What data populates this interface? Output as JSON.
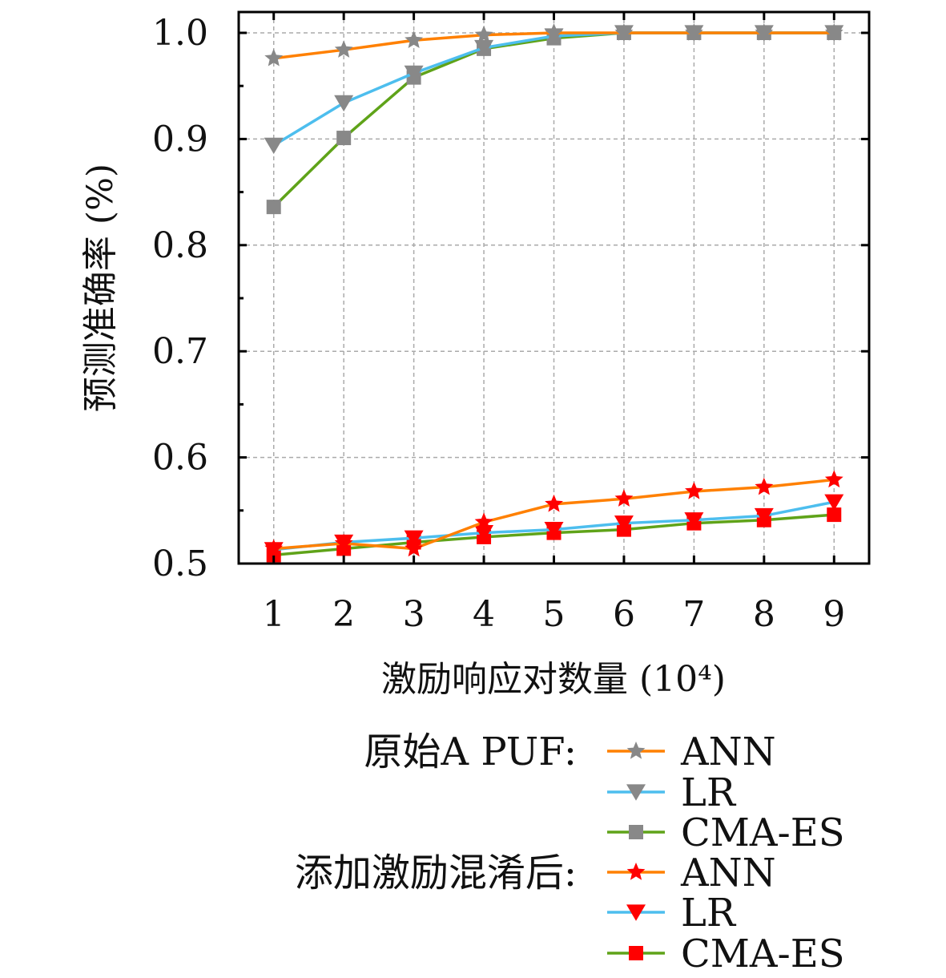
{
  "chart_data": {
    "type": "line",
    "xlabel": "激励响应对数量 (10⁴)",
    "ylabel": "预测准确率 (%)",
    "x": [
      1,
      2,
      3,
      4,
      5,
      6,
      7,
      8,
      9
    ],
    "xticks": [
      "1",
      "2",
      "3",
      "4",
      "5",
      "6",
      "7",
      "8",
      "9"
    ],
    "yticks": [
      "0.5",
      "0.6",
      "0.7",
      "0.8",
      "0.9",
      "1.0"
    ],
    "ylim": [
      0.5,
      1.0
    ],
    "xlim": [
      0.5,
      9.5
    ],
    "grid": true,
    "legend_position": "bottom",
    "groups": [
      {
        "label": "原始A PUF:",
        "marker_color": "#888888",
        "series": [
          {
            "name": "ANN",
            "marker": "star",
            "color": "#ff8000",
            "values": [
              0.976,
              0.984,
              0.993,
              0.998,
              1.0,
              1.0,
              1.0,
              1.0,
              1.0
            ]
          },
          {
            "name": "LR",
            "marker": "triangle-down",
            "color": "#4dbeee",
            "values": [
              0.894,
              0.934,
              0.962,
              0.986,
              0.997,
              1.0,
              1.0,
              1.0,
              1.0
            ]
          },
          {
            "name": "CMA-ES",
            "marker": "square",
            "color": "#5fa319",
            "values": [
              0.836,
              0.901,
              0.958,
              0.985,
              0.995,
              1.0,
              1.0,
              1.0,
              1.0
            ]
          }
        ]
      },
      {
        "label": "添加激励混淆后:",
        "marker_color": "#ff0000",
        "series": [
          {
            "name": "ANN",
            "marker": "star",
            "color": "#ff8000",
            "values": [
              0.514,
              0.519,
              0.514,
              0.539,
              0.556,
              0.561,
              0.568,
              0.572,
              0.579
            ]
          },
          {
            "name": "LR",
            "marker": "triangle-down",
            "color": "#4dbeee",
            "values": [
              0.513,
              0.52,
              0.524,
              0.529,
              0.532,
              0.538,
              0.541,
              0.545,
              0.558
            ]
          },
          {
            "name": "CMA-ES",
            "marker": "square",
            "color": "#5fa319",
            "values": [
              0.508,
              0.514,
              0.52,
              0.525,
              0.529,
              0.532,
              0.538,
              0.541,
              0.546
            ]
          }
        ]
      }
    ]
  }
}
